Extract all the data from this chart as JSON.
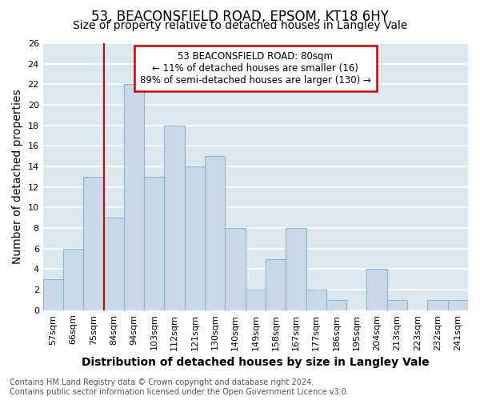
{
  "title": "53, BEACONSFIELD ROAD, EPSOM, KT18 6HY",
  "subtitle": "Size of property relative to detached houses in Langley Vale",
  "xlabel": "Distribution of detached houses by size in Langley Vale",
  "ylabel": "Number of detached properties",
  "bin_labels": [
    "57sqm",
    "66sqm",
    "75sqm",
    "84sqm",
    "94sqm",
    "103sqm",
    "112sqm",
    "121sqm",
    "130sqm",
    "140sqm",
    "149sqm",
    "158sqm",
    "167sqm",
    "177sqm",
    "186sqm",
    "195sqm",
    "204sqm",
    "213sqm",
    "223sqm",
    "232sqm",
    "241sqm"
  ],
  "bar_values": [
    3,
    6,
    13,
    9,
    22,
    13,
    18,
    14,
    15,
    8,
    2,
    5,
    8,
    2,
    1,
    0,
    4,
    1,
    0,
    1,
    1
  ],
  "bar_color": "#c8daea",
  "bar_edge_color": "#8ab4d0",
  "vline_color": "#cc0000",
  "ylim": [
    0,
    26
  ],
  "yticks": [
    0,
    2,
    4,
    6,
    8,
    10,
    12,
    14,
    16,
    18,
    20,
    22,
    24,
    26
  ],
  "annotation_title": "53 BEACONSFIELD ROAD: 80sqm",
  "annotation_line1": "← 11% of detached houses are smaller (16)",
  "annotation_line2": "89% of semi-detached houses are larger (130) →",
  "annotation_box_color": "#ffffff",
  "annotation_box_edge": "#cc0000",
  "footer_line1": "Contains HM Land Registry data © Crown copyright and database right 2024.",
  "footer_line2": "Contains public sector information licensed under the Open Government Licence v3.0.",
  "plot_bg_color": "#dce8f0",
  "fig_bg_color": "#ffffff",
  "grid_color": "#ffffff",
  "title_fontsize": 12,
  "subtitle_fontsize": 10,
  "axis_label_fontsize": 10,
  "tick_fontsize": 8,
  "footer_fontsize": 7,
  "annotation_fontsize": 8.5
}
